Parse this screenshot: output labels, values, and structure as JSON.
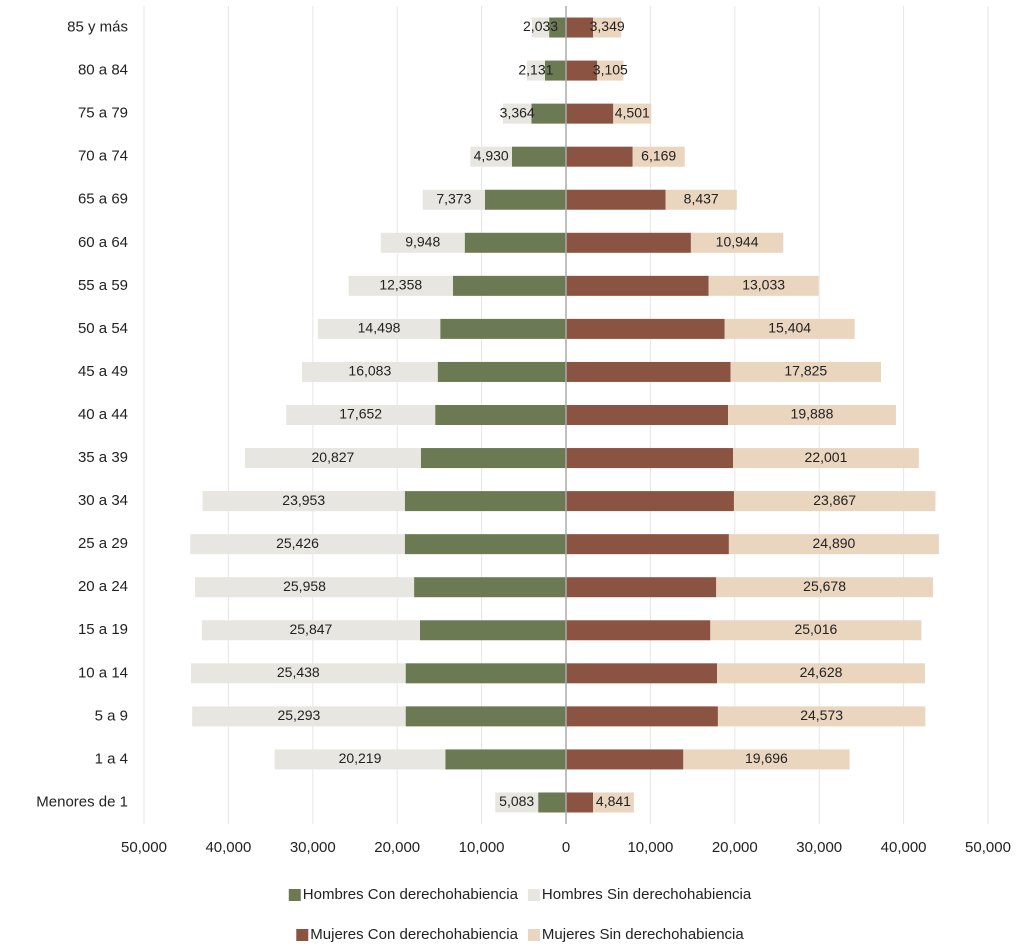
{
  "chart_data": {
    "type": "pyramid",
    "categories": [
      "85 y más",
      "80 a 84",
      "75 a 79",
      "70 a 74",
      "65 a 69",
      "60 a 64",
      "55 a 59",
      "50 a 54",
      "45 a 49",
      "40 a 44",
      "35 a 39",
      "30 a 34",
      "25 a 29",
      "20 a 24",
      "15 a 19",
      "10 a 14",
      "5 a 9",
      "1 a 4",
      "Menores de 1"
    ],
    "series": [
      {
        "name": "Hombres Con derechohabiencia",
        "color": "#6b7a52",
        "values": [
          -2000,
          -2500,
          -4100,
          -6400,
          -9600,
          -12000,
          -13400,
          -14900,
          -15200,
          -15500,
          -17200,
          -19100,
          -19100,
          -18000,
          -17300,
          -19000,
          -19000,
          -14300,
          -3300
        ]
      },
      {
        "name": "Hombres Sin derechohabiencia",
        "color": "#e8e6e0",
        "values": [
          -2033,
          -2131,
          -3364,
          -4930,
          -7373,
          -9948,
          -12358,
          -14498,
          -16083,
          -17652,
          -20827,
          -23953,
          -25426,
          -25958,
          -25847,
          -25438,
          -25293,
          -20219,
          -5083
        ],
        "value_labels": [
          "2,033",
          "2,131",
          "3,364",
          "4,930",
          "7,373",
          "9,948",
          "12,358",
          "14,498",
          "16,083",
          "17,652",
          "20,827",
          "23,953",
          "25,426",
          "25,958",
          "25,847",
          "25,438",
          "25,293",
          "20,219",
          "5,083"
        ]
      },
      {
        "name": "Mujeres Con derechohabiencia",
        "color": "#8b5341",
        "values": [
          3200,
          3700,
          5600,
          7900,
          11800,
          14800,
          16900,
          18800,
          19500,
          19200,
          19800,
          19900,
          19300,
          17800,
          17100,
          17900,
          18000,
          13900,
          3200
        ]
      },
      {
        "name": "Mujeres Sin derechohabiencia",
        "color": "#ead5bf",
        "values": [
          3349,
          3105,
          4501,
          6169,
          8437,
          10944,
          13033,
          15404,
          17825,
          19888,
          22001,
          23867,
          24890,
          25678,
          25016,
          24628,
          24573,
          19696,
          4841
        ],
        "value_labels": [
          "3,349",
          "3,105",
          "4,501",
          "6,169",
          "8,437",
          "10,944",
          "13,033",
          "15,404",
          "17,825",
          "19,888",
          "22,001",
          "23,867",
          "24,890",
          "25,678",
          "25,016",
          "24,628",
          "24,573",
          "19,696",
          "4,841"
        ]
      }
    ],
    "xlim": [
      -50000,
      50000
    ],
    "xticks": [
      {
        "value": -50000,
        "label": "50,000"
      },
      {
        "value": -40000,
        "label": "40,000"
      },
      {
        "value": -30000,
        "label": "30,000"
      },
      {
        "value": -20000,
        "label": "20,000"
      },
      {
        "value": -10000,
        "label": "10,000"
      },
      0,
      {
        "value": 10000,
        "label": "10,000"
      },
      {
        "value": 20000,
        "label": "20,000"
      },
      {
        "value": 30000,
        "label": "30,000"
      },
      {
        "value": 40000,
        "label": "40,000"
      },
      {
        "value": 50000,
        "label": "50,000"
      }
    ],
    "grid": true
  }
}
